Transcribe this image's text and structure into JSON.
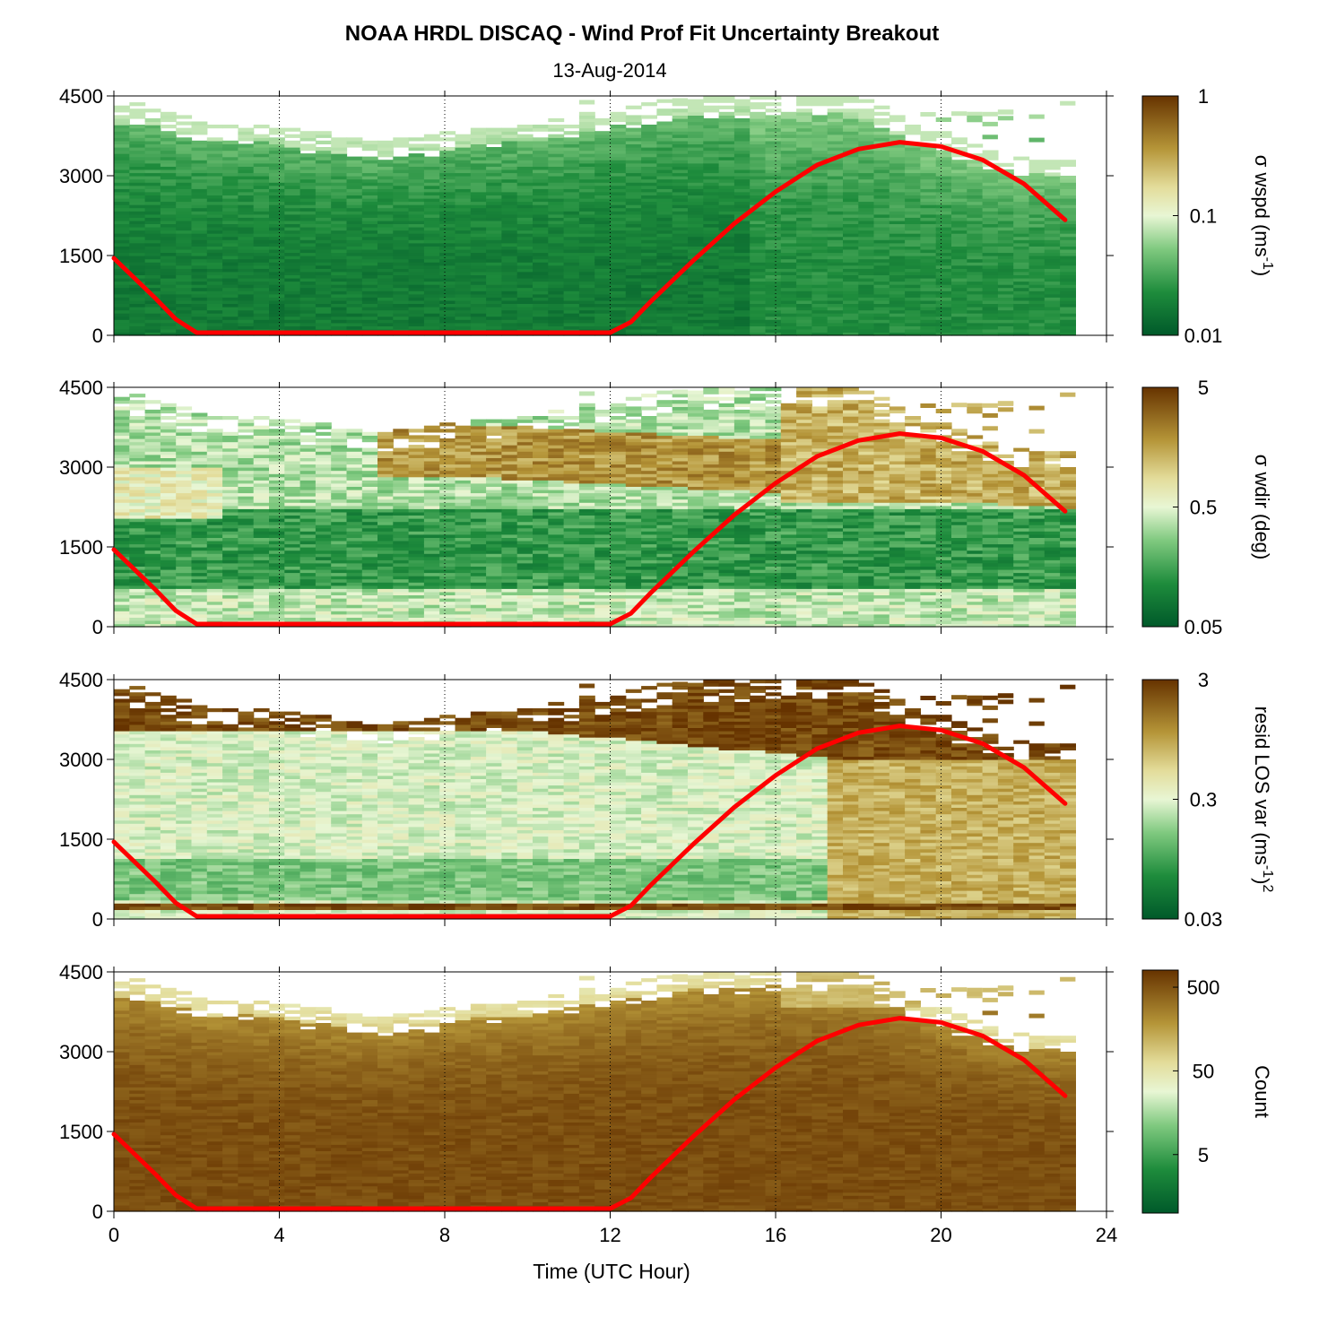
{
  "title": "NOAA HRDL DISCAQ - Wind Prof Fit Uncertainty Breakout",
  "subtitle": "13-Aug-2014",
  "chart_data": {
    "type": "heatmap",
    "x_axis": {
      "label": "Time (UTC Hour)",
      "range": [
        0,
        24
      ],
      "ticks": [
        0,
        4,
        8,
        12,
        16,
        20,
        24
      ],
      "grid": "dotted vertical lines at ticks"
    },
    "y_axis": {
      "range": [
        0,
        4500
      ],
      "ticks": [
        0,
        1500,
        3000,
        4500
      ]
    },
    "time_bins_hours": [
      0,
      0.375,
      0.75,
      1.125,
      1.5,
      1.875,
      2.25,
      2.625,
      3,
      3.375,
      3.75,
      4.125,
      4.5,
      4.875,
      5.25,
      5.625,
      6,
      6.375,
      6.75,
      7.125,
      7.5,
      7.875,
      8.25,
      8.625,
      9,
      9.375,
      9.75,
      10.125,
      10.5,
      10.875,
      11.25,
      11.625,
      12,
      12.375,
      12.75,
      13.125,
      13.5,
      13.875,
      14.25,
      14.625,
      15,
      15.375,
      15.75,
      16.125,
      16.5,
      16.875,
      17.25,
      17.625,
      18,
      18.375,
      18.75,
      19.125,
      19.5,
      19.875,
      20.25,
      20.625,
      21,
      21.375,
      21.75,
      22.125,
      22.5,
      22.875
    ],
    "data_top_m": [
      4300,
      4350,
      4250,
      4150,
      4100,
      4000,
      3950,
      3950,
      4000,
      3950,
      3900,
      3850,
      3800,
      3800,
      3750,
      3700,
      3650,
      3650,
      3700,
      3750,
      3750,
      3800,
      3850,
      3900,
      3900,
      3950,
      3950,
      4000,
      4050,
      4100,
      4150,
      4200,
      4250,
      4300,
      4350,
      4400,
      4400,
      4450,
      4450,
      4450,
      4450,
      4500,
      4500,
      4500,
      4500,
      4500,
      4500,
      4500,
      4400,
      4300,
      4100,
      4000,
      3900,
      3800,
      3700,
      3600,
      3500,
      3450,
      3400,
      3350,
      3300,
      3300
    ],
    "line_series": {
      "color": "#ff0000",
      "x": [
        0,
        1,
        1.5,
        2,
        4,
        8,
        12,
        12.5,
        13,
        14,
        15,
        16,
        17,
        18,
        19,
        20,
        21,
        22,
        23
      ],
      "y": [
        1450,
        700,
        300,
        50,
        50,
        50,
        50,
        250,
        650,
        1400,
        2100,
        2700,
        3200,
        3500,
        3630,
        3550,
        3300,
        2850,
        2170
      ]
    },
    "panels": [
      {
        "colorbar_label": "σ wspd (ms",
        "colorbar_label_sup": "-1",
        "colorbar_label_tail": ")",
        "colorbar_ticks": [
          "1",
          "0.1",
          "0.01"
        ],
        "colorbar_scale": "log",
        "colorbar_range": [
          0.01,
          1
        ],
        "colormap": "green-to-brown",
        "field": "sigma_wspd"
      },
      {
        "colorbar_label": "σ wdir (deg)",
        "colorbar_label_sup": "",
        "colorbar_label_tail": "",
        "colorbar_ticks": [
          "5",
          "0.5",
          "0.05"
        ],
        "colorbar_scale": "log",
        "colorbar_range": [
          0.05,
          5
        ],
        "colormap": "green-to-brown",
        "field": "sigma_wdir"
      },
      {
        "colorbar_label": "resid LOS var (ms",
        "colorbar_label_sup": "-1",
        "colorbar_label_tail": ")",
        "colorbar_label_sup2": "2",
        "colorbar_ticks": [
          "3",
          "0.3",
          "0.03"
        ],
        "colorbar_scale": "log",
        "colorbar_range": [
          0.03,
          3
        ],
        "colormap": "green-to-brown",
        "field": "resid_los_var"
      },
      {
        "colorbar_label": "Count",
        "colorbar_label_sup": "",
        "colorbar_label_tail": "",
        "colorbar_ticks": [
          "500",
          "50",
          "5"
        ],
        "colorbar_scale": "log",
        "colorbar_range": [
          1,
          800
        ],
        "colormap": "green-to-brown",
        "field": "count"
      }
    ]
  }
}
